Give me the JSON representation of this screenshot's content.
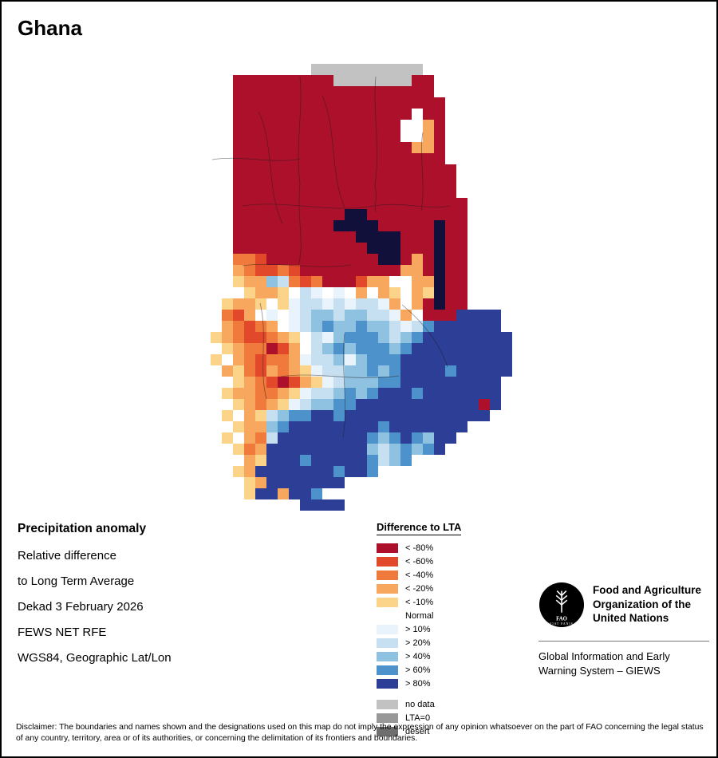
{
  "page": {
    "title": "Ghana"
  },
  "info_block": {
    "heading": "Precipitation anomaly",
    "lines": [
      "Relative difference",
      "to Long Term Average",
      "Dekad 3 February 2026",
      "FEWS NET RFE",
      "WGS84, Geographic Lat/Lon"
    ]
  },
  "legend": {
    "title": "Difference to LTA",
    "items": [
      {
        "label": "< -80%",
        "color": "#AD102A",
        "gap_before": false
      },
      {
        "label": "< -60%",
        "color": "#E2492B",
        "gap_before": false
      },
      {
        "label": "< -40%",
        "color": "#F0793C",
        "gap_before": false
      },
      {
        "label": "< -20%",
        "color": "#F7A85E",
        "gap_before": false
      },
      {
        "label": "< -10%",
        "color": "#FCD489",
        "gap_before": false
      },
      {
        "label": "Normal",
        "color": "#FFFFFF",
        "gap_before": false
      },
      {
        "label": "> 10%",
        "color": "#E9F3FB",
        "gap_before": false
      },
      {
        "label": "> 20%",
        "color": "#C6E0F1",
        "gap_before": false
      },
      {
        "label": "> 40%",
        "color": "#8FC1E1",
        "gap_before": false
      },
      {
        "label": "> 60%",
        "color": "#4D92CA",
        "gap_before": false
      },
      {
        "label": "> 80%",
        "color": "#2C3E96",
        "gap_before": false
      },
      {
        "label": "no data",
        "color": "#C2C2C2",
        "gap_before": true
      },
      {
        "label": "LTA=0",
        "color": "#989898",
        "gap_before": false
      },
      {
        "label": "desert",
        "color": "#6E6E6E",
        "gap_before": false
      }
    ]
  },
  "org": {
    "logo_text": "FAO",
    "logo_motto": "FIAT PANIS",
    "name_lines": [
      "Food and Agriculture",
      "Organization of the",
      "United Nations"
    ],
    "subtitle_lines": [
      "Global Information and Early",
      "Warning System – GIEWS"
    ]
  },
  "disclaimer": "Disclaimer: The boundaries and names shown and the designations used on this map do not imply the expression of any opinion whatsoever on the part of FAO concerning the legal status of any country, territory, area or of its authorities, or concerning the delimitation of its frontiers and boundaries.",
  "map": {
    "region": "Ghana",
    "cell": 14,
    "cols": 27,
    "palette": {
      "A": "#AD102A",
      "B": "#E2492B",
      "C": "#F0793C",
      "D": "#F7A85E",
      "E": "#FCD489",
      "N": "#FFFFFF",
      "F": "#E9F3FB",
      "G": "#C6E0F1",
      "H": "#8FC1E1",
      "I": "#4D92CA",
      "J": "#2C3E96",
      "X": "#C2C2C2",
      "Z": "#989898",
      "S": "#6E6E6E",
      "L": "#10103A"
    },
    "rows": [
      ".........XXXXXXXXXX........",
      "..AAAAAAAAAXXXXXXXAA.......",
      "..AAAAAAAAAAAAAAAAAA.......",
      "..AAAAAAAAAAAAAAAAAAA......",
      "..AAAAAAAAAAAAAAAANAA......",
      "..AAAAAAAAAAAAAAANNDA......",
      "..AAAAAAAAAAAAAAANNDA......",
      "..AAAAAAAAAAAAAAAADDA......",
      "..AAAAAAAAAAAAAAAAAAA......",
      "..AAAAAAAAAAAAAAAAAAAA.....",
      "..AAAAAAAAAAAAAAAAAAAA.....",
      "..AAAAAAAAAAAAAAAAAAAA.....",
      "..AAAAAAAAAAAAAAAAAAAAA....",
      "..AAAAAAAAAALLAAAAAAAAA....",
      "..AAAAAAAAALLLLAAAAALAA....",
      "..AAAAAAAAAAALLLLAAALAA....",
      "..AAAAAAAAAAAALLLAAALAA....",
      "..CCBAAAAAAAAAALLADALAA....",
      "..DCBBCBAAAAAAAAADDALAA....",
      "..EDDHGCBCAAABDDNNDDLAA....",
      "..NEDDENGFNFNDNDENDELAA....",
      ".EDDENEFGGFGFGGFDNDALAA....",
      ".CBDNFNFGHHGHHGGFDNAAAJJJJ.",
      ".DCBCDNFGHIHHIHHGFGIJJJJJJ.",
      "EDCBBCDENGFHIIIHGHIJJJJJJJJ",
      "NEDCCABDNGHIHIIIHIJJJJJJJJJ",
      "ENDCBCCDFGGHFHIIIJJJJJJJJJJ",
      "NDECBDCDEFGGHHIHIJJJJIJJJJJ",
      ".NEDCBABDEFGHHHIIJJJJJJJJJ.",
      ".EDDCCDEFGGHIHIJJJIJJJJJJJ.",
      ".NEDCDEFGHHIIJJJJJJJJJJJAJ.",
      ".ENDEGHIIJJIJJJJJJJJJJJJJ..",
      ".NEDDHIJJJJJJJJIJJJJJJJ....",
      ".ENDCGJJJJJJJJIHIJIHJJ.....",
      "..ECDJJJJJJJJJHGHIHIJ......",
      "..NDEJJJIJJJJJIGHI.........",
      "..EDJJJJJJJIJJI............",
      "..NEDJJJJJJJ...............",
      "...EJJDJJI.................",
      "........JJJJ..............."
    ]
  }
}
